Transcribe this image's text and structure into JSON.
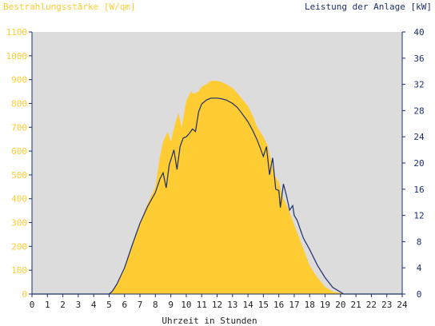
{
  "chart_data": {
    "type": "area",
    "title_left": "Bestrahlungsstärke [W/qm]",
    "title_right": "Leistung der Anlage [kW]",
    "xlabel": "Uhrzeit in Stunden",
    "xlim": [
      0,
      24
    ],
    "ylim_left": [
      0,
      1100
    ],
    "ylim_right": [
      0,
      40
    ],
    "x_ticks": [
      0,
      1,
      2,
      3,
      4,
      5,
      6,
      7,
      8,
      9,
      10,
      11,
      12,
      13,
      14,
      15,
      16,
      17,
      18,
      19,
      20,
      21,
      22,
      23,
      24
    ],
    "y_ticks_left": [
      0,
      100,
      200,
      300,
      400,
      500,
      600,
      700,
      800,
      900,
      1000,
      1100
    ],
    "y_ticks_right": [
      0,
      4,
      8,
      12,
      16,
      20,
      24,
      28,
      32,
      36,
      40
    ],
    "grid": false,
    "colors": {
      "irradiance": "#ffcc33",
      "power": "#1a2e6e",
      "plot_bg": "#dcdcdc",
      "left_axis_text": "#ffcc33",
      "right_axis_text": "#1a2e6e",
      "axis": "#1a2e6e"
    },
    "series": [
      {
        "name": "Bestrahlungsstärke [W/qm]",
        "axis": "left",
        "kind": "area",
        "x": [
          0,
          5.0,
          5.2,
          5.5,
          6.0,
          6.5,
          7.0,
          7.5,
          8.0,
          8.3,
          8.5,
          8.8,
          9.0,
          9.3,
          9.5,
          9.7,
          10.0,
          10.3,
          10.5,
          10.8,
          11.0,
          11.3,
          11.6,
          12.0,
          12.3,
          12.6,
          13.0,
          13.3,
          13.6,
          14.0,
          14.3,
          14.6,
          15.0,
          15.3,
          15.5,
          15.7,
          16.0,
          16.3,
          16.6,
          17.0,
          17.3,
          17.6,
          18.0,
          18.5,
          19.0,
          19.5,
          20.0,
          20.2,
          24
        ],
        "y": [
          0,
          0,
          10,
          40,
          110,
          200,
          300,
          380,
          450,
          580,
          640,
          680,
          640,
          720,
          760,
          700,
          810,
          850,
          840,
          850,
          870,
          880,
          895,
          895,
          890,
          880,
          865,
          845,
          820,
          790,
          750,
          700,
          660,
          620,
          560,
          500,
          470,
          400,
          360,
          290,
          240,
          190,
          120,
          70,
          30,
          10,
          5,
          0,
          0
        ]
      },
      {
        "name": "Leistung der Anlage [kW]",
        "axis": "right",
        "kind": "line",
        "x": [
          0,
          5.0,
          5.2,
          5.5,
          6.0,
          6.5,
          7.0,
          7.5,
          8.0,
          8.3,
          8.5,
          8.7,
          8.9,
          9.0,
          9.2,
          9.4,
          9.6,
          9.8,
          10.0,
          10.2,
          10.4,
          10.6,
          10.8,
          11.0,
          11.3,
          11.6,
          12.0,
          12.3,
          12.6,
          13.0,
          13.3,
          13.6,
          14.0,
          14.3,
          14.6,
          15.0,
          15.2,
          15.4,
          15.6,
          15.8,
          16.0,
          16.1,
          16.3,
          16.5,
          16.7,
          16.9,
          17.0,
          17.2,
          17.4,
          17.6,
          18.0,
          18.5,
          19.0,
          19.5,
          20.0,
          20.2,
          24
        ],
        "y": [
          0,
          0,
          0.4,
          1.5,
          4.0,
          7.5,
          10.8,
          13.4,
          15.5,
          17.6,
          18.5,
          16.2,
          19.8,
          20.5,
          22.0,
          19.0,
          22.5,
          23.8,
          24.0,
          24.5,
          25.2,
          24.8,
          27.8,
          29.0,
          29.6,
          29.9,
          29.9,
          29.8,
          29.6,
          29.1,
          28.5,
          27.6,
          26.3,
          25.0,
          23.5,
          21.0,
          22.5,
          18.2,
          20.8,
          16.0,
          15.8,
          13.2,
          16.8,
          15.0,
          12.8,
          13.5,
          12.0,
          11.2,
          9.8,
          8.5,
          6.8,
          4.4,
          2.5,
          1.0,
          0.3,
          0,
          0
        ]
      }
    ]
  }
}
